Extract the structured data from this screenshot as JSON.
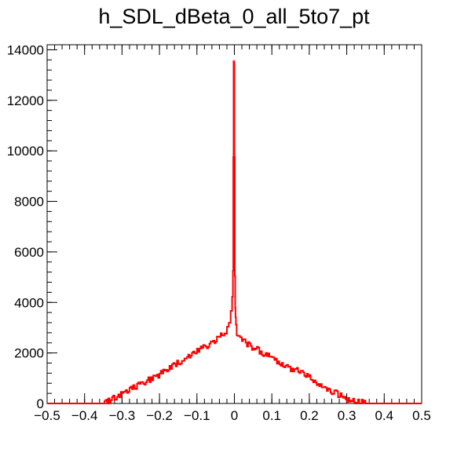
{
  "chart_data": {
    "type": "line",
    "title": "h_SDL_dBeta_0_all_5to7_pt",
    "xlabel": "",
    "ylabel": "",
    "xlim": [
      -0.5,
      0.5
    ],
    "ylim": [
      0,
      14200
    ],
    "grid": false,
    "x_ticks": [
      -0.5,
      -0.4,
      -0.3,
      -0.2,
      -0.1,
      0,
      0.1,
      0.2,
      0.3,
      0.4,
      0.5
    ],
    "x_tick_labels": [
      "−0.5",
      "−0.4",
      "−0.3",
      "−0.2",
      "−0.1",
      "0",
      "0.1",
      "0.2",
      "0.3",
      "0.4",
      "0.5"
    ],
    "y_ticks": [
      0,
      2000,
      4000,
      6000,
      8000,
      10000,
      12000,
      14000
    ],
    "y_tick_labels": [
      "0",
      "2000",
      "4000",
      "6000",
      "8000",
      "10000",
      "12000",
      "14000"
    ],
    "series": [
      {
        "color": "#ff0000",
        "x": [
          -0.5,
          -0.35,
          -0.34,
          -0.32,
          -0.3,
          -0.28,
          -0.26,
          -0.24,
          -0.22,
          -0.2,
          -0.18,
          -0.16,
          -0.14,
          -0.12,
          -0.1,
          -0.08,
          -0.06,
          -0.04,
          -0.03,
          -0.02,
          -0.015,
          -0.01,
          -0.006,
          -0.004,
          -0.003,
          -0.002,
          -0.001,
          0.0,
          0.001,
          0.002,
          0.003,
          0.004,
          0.006,
          0.01,
          0.015,
          0.02,
          0.03,
          0.04,
          0.06,
          0.08,
          0.1,
          0.12,
          0.14,
          0.16,
          0.18,
          0.2,
          0.22,
          0.24,
          0.26,
          0.28,
          0.3,
          0.32,
          0.34,
          0.35,
          0.5
        ],
        "y": [
          0,
          0,
          50,
          200,
          350,
          550,
          700,
          850,
          1000,
          1150,
          1350,
          1550,
          1700,
          1900,
          2050,
          2250,
          2400,
          2650,
          2800,
          2900,
          3100,
          3300,
          3800,
          4500,
          6000,
          13500,
          13600,
          13400,
          6100,
          4000,
          3500,
          3100,
          2900,
          2700,
          2600,
          2550,
          2450,
          2300,
          2150,
          1950,
          1850,
          1650,
          1450,
          1350,
          1200,
          1050,
          850,
          650,
          500,
          350,
          200,
          100,
          30,
          0,
          0
        ]
      }
    ]
  }
}
